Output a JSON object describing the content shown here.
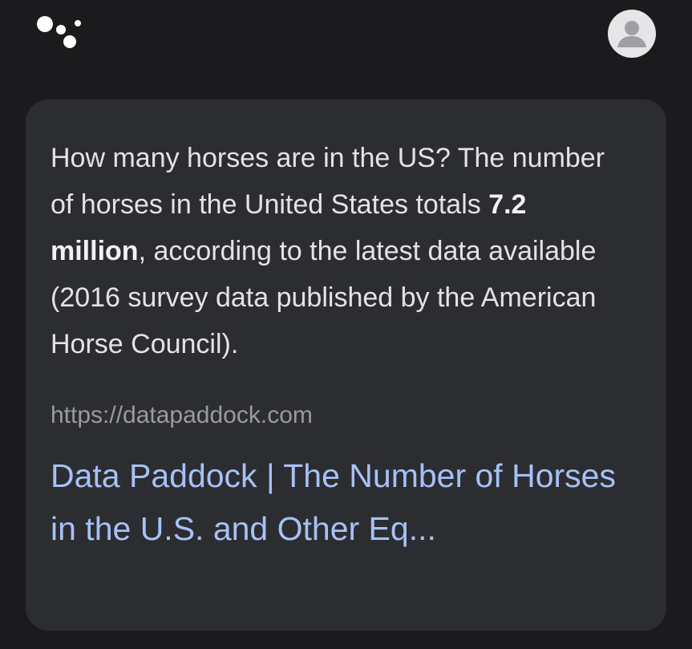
{
  "header": {
    "logo_icon": "google-assistant-dots-icon",
    "avatar_icon": "user-avatar-icon"
  },
  "answer": {
    "text_before": "How many horses are in the US? The number of horses in the United States totals ",
    "highlight": "7.2 million",
    "text_after": ", according to the latest data available (2016 survey data published by the American Horse Council)."
  },
  "source": {
    "url": "https://datapaddock.com",
    "title": "Data Paddock | The Number of Horses in the U.S. and Other Eq..."
  },
  "colors": {
    "background": "#1b1b1d",
    "card": "#2c2d31",
    "link": "#a6c1f5",
    "url": "#9a9ba0"
  }
}
